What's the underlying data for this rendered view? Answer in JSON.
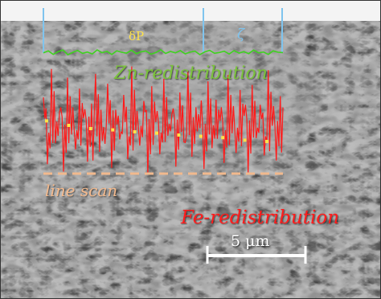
{
  "labels": {
    "delta_p": "δP",
    "zeta": "ζ",
    "zn": "Zn-redistribution",
    "fe": "Fe-redistribution",
    "line_scan": "line scan",
    "scale_bar": "5 μm"
  },
  "colors": {
    "zn_trace": "#3fd21f",
    "zn_label": "#7ac23a",
    "fe_trace": "#ff1a1a",
    "fe_label": "#ff1e1e",
    "markers": "#ffe24a",
    "line_scan": "#f2b98d",
    "guides": "#7fc4ee",
    "scale_bar": "#ffffff"
  },
  "zn_profile": [
    0.45,
    0.62,
    0.31,
    0.55,
    0.7,
    0.28,
    0.49,
    0.66,
    0.4,
    0.52,
    0.35,
    0.71,
    0.46,
    0.58,
    0.3,
    0.63,
    0.5,
    0.42,
    0.68,
    0.37,
    0.54,
    0.61,
    0.33,
    0.47,
    0.72,
    0.39,
    0.57,
    0.44,
    0.65,
    0.36,
    0.51,
    0.6,
    0.29,
    0.53,
    0.67,
    0.41,
    0.48,
    0.59,
    0.34,
    0.64,
    0.43,
    0.56,
    0.38,
    0.69,
    0.45,
    0.52,
    0.31,
    0.62,
    0.5,
    0.47
  ],
  "fe_profile": [
    0.72,
    0.18,
    0.95,
    0.35,
    0.6,
    0.12,
    0.88,
    0.42,
    0.3,
    0.79,
    0.55,
    0.2,
    0.67,
    0.91,
    0.28,
    0.48,
    0.83,
    0.15,
    0.62,
    0.38,
    0.74,
    0.22,
    0.97,
    0.45,
    0.33,
    0.69,
    0.1,
    0.81,
    0.52,
    0.26,
    0.87,
    0.41,
    0.58,
    0.16,
    0.76,
    0.36,
    0.93,
    0.24,
    0.64,
    0.47,
    0.14,
    0.85,
    0.31,
    0.7,
    0.53,
    0.19,
    0.9,
    0.43,
    0.27,
    0.78,
    0.57,
    0.11,
    0.82,
    0.39,
    0.66,
    0.25,
    0.94,
    0.49,
    0.21,
    0.73
  ],
  "fe_markers": [
    0.62,
    0.55,
    0.5,
    0.48,
    0.45,
    0.43,
    0.4,
    0.38,
    0.36,
    0.32,
    0.3
  ]
}
